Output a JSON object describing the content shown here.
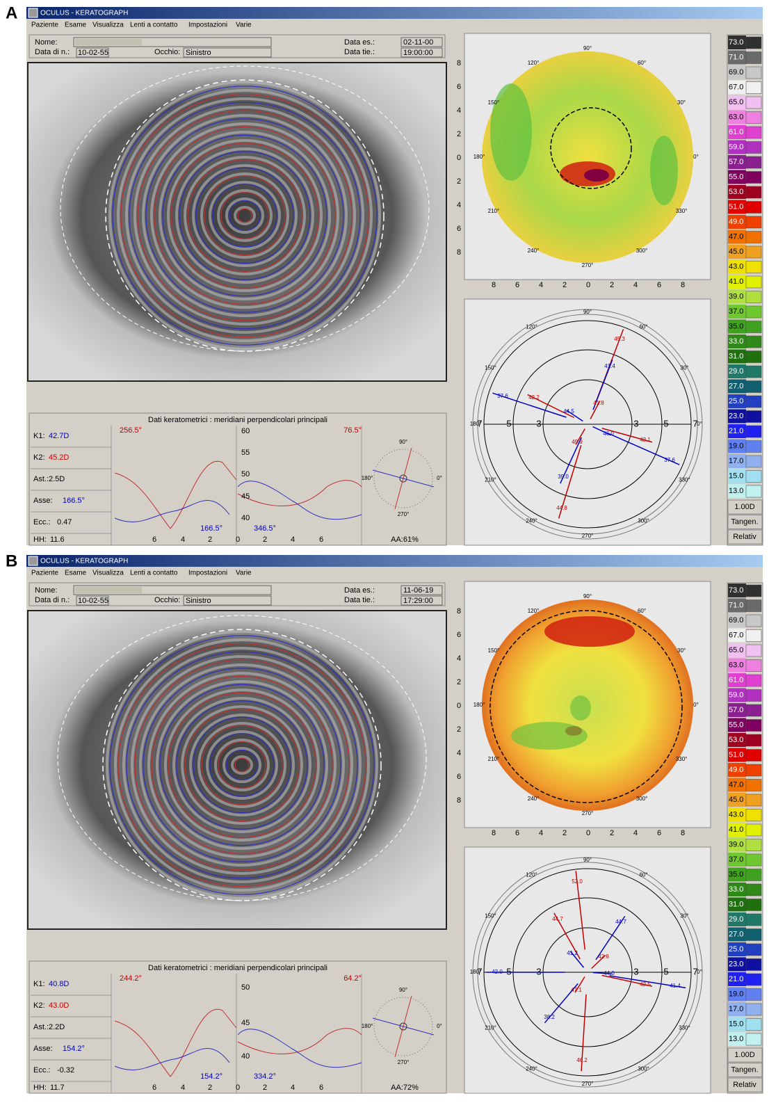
{
  "panels": [
    {
      "label": "A",
      "window_title": "OCULUS - KERATOGRAPH",
      "menu": [
        "Paziente",
        "Esame",
        "Visualizza",
        "Lenti a contatto",
        "Impostazioni",
        "Varie"
      ],
      "patient": {
        "name_label": "Nome:",
        "birth_label": "Data di n.:",
        "birth": "10-02-55",
        "eye_label": "Occhio:",
        "eye": "Sinistro",
        "exam_label": "Data es.:",
        "exam": "02-11-00",
        "time_label": "Data tie.:",
        "time": "19:00:00"
      },
      "kerato": {
        "title": "Dati keratometrici : meridiani perpendicolari principali",
        "rows": [
          {
            "label": "K1:",
            "value": "42.7D"
          },
          {
            "label": "K2:",
            "value": "45.2D"
          },
          {
            "label": "Ast.:",
            "value": "2.5D"
          },
          {
            "label": "Asse:",
            "value": "166.5°"
          },
          {
            "label": "Ecc.:",
            "value": "0.47"
          },
          {
            "label": "HH:",
            "value": "11.6"
          }
        ],
        "angles": [
          "256.5°",
          "76.5°",
          "166.5°",
          "346.5°"
        ],
        "yticks": [
          "60",
          "55",
          "50",
          "45",
          "40"
        ],
        "xticks": [
          "6",
          "4",
          "2",
          "0",
          "2",
          "4",
          "6"
        ],
        "compass": [
          "90°",
          "0°",
          "270°",
          "180°"
        ],
        "aa": "AA:61%"
      },
      "topo": {
        "ticks": [
          "8",
          "6",
          "4",
          "2",
          "0",
          "2",
          "4",
          "6",
          "8"
        ],
        "degrees": [
          "90°",
          "60°",
          "30°",
          "0°",
          "330°",
          "300°",
          "270°",
          "240°",
          "210°",
          "180°",
          "150°",
          "120°"
        ]
      },
      "polar": {
        "rings": [
          "7",
          "5",
          "3",
          "3",
          "5",
          "7"
        ],
        "degrees": [
          "90°",
          "60°",
          "30°",
          "0°",
          "330°",
          "300°",
          "270°",
          "240°",
          "210°",
          "180°",
          "150°",
          "120°"
        ],
        "values": [
          {
            "text": "45.3",
            "color": "#c00000"
          },
          {
            "text": "41.4",
            "color": "#0000c0"
          },
          {
            "text": "37.6",
            "color": "#0000c0"
          },
          {
            "text": "42.2",
            "color": "#c00000"
          },
          {
            "text": "44.5",
            "color": "#0000c0"
          },
          {
            "text": "41.8",
            "color": "#c00000"
          },
          {
            "text": "46.0",
            "color": "#0000c0"
          },
          {
            "text": "49.9",
            "color": "#c00000"
          },
          {
            "text": "42.1",
            "color": "#c00000"
          },
          {
            "text": "37.6",
            "color": "#0000c0"
          },
          {
            "text": "39.0",
            "color": "#0000c0"
          },
          {
            "text": "44.8",
            "color": "#c00000"
          }
        ]
      },
      "scale": {
        "levels": [
          "73.0",
          "71.0",
          "69.0",
          "67.0",
          "65.0",
          "63.0",
          "61.0",
          "59.0",
          "57.0",
          "55.0",
          "53.0",
          "51.0",
          "49.0",
          "47.0",
          "45.0",
          "43.0",
          "41.0",
          "39.0",
          "37.0",
          "35.0",
          "33.0",
          "31.0",
          "29.0",
          "27.0",
          "25.0",
          "23.0",
          "21.0",
          "19.0",
          "17.0",
          "15.0",
          "13.0"
        ],
        "step": "1.00D",
        "mode": "Tangen.",
        "reference": "Relativ"
      }
    },
    {
      "label": "B",
      "window_title": "OCULUS - KERATOGRAPH",
      "menu": [
        "Paziente",
        "Esame",
        "Visualizza",
        "Lenti a contatto",
        "Impostazioni",
        "Varie"
      ],
      "patient": {
        "name_label": "Nome:",
        "birth_label": "Data di n.:",
        "birth": "10-02-55",
        "eye_label": "Occhio:",
        "eye": "Sinistro",
        "exam_label": "Data es.:",
        "exam": "11-06-19",
        "time_label": "Data tie.:",
        "time": "17:29:00"
      },
      "kerato": {
        "title": "Dati keratometrici : meridiani perpendicolari principali",
        "rows": [
          {
            "label": "K1:",
            "value": "40.8D"
          },
          {
            "label": "K2:",
            "value": "43.0D"
          },
          {
            "label": "Ast.:",
            "value": "2.2D"
          },
          {
            "label": "Asse:",
            "value": "154.2°"
          },
          {
            "label": "Ecc.:",
            "value": "-0.32"
          },
          {
            "label": "HH:",
            "value": "11.7"
          }
        ],
        "angles": [
          "244.2°",
          "64.2°",
          "154.2°",
          "334.2°"
        ],
        "yticks": [
          "50",
          "45",
          "40"
        ],
        "xticks": [
          "6",
          "4",
          "2",
          "0",
          "2",
          "4",
          "6"
        ],
        "compass": [
          "90°",
          "0°",
          "270°",
          "180°"
        ],
        "aa": "AA:72%"
      },
      "topo": {
        "ticks": [
          "8",
          "6",
          "4",
          "2",
          "0",
          "2",
          "4",
          "6",
          "8"
        ],
        "degrees": [
          "90°",
          "60°",
          "30°",
          "0°",
          "330°",
          "300°",
          "270°",
          "240°",
          "210°",
          "180°",
          "150°",
          "120°"
        ]
      },
      "polar": {
        "rings": [
          "7",
          "5",
          "3",
          "3",
          "5",
          "7"
        ],
        "degrees": [
          "90°",
          "60°",
          "30°",
          "0°",
          "330°",
          "300°",
          "270°",
          "240°",
          "210°",
          "180°",
          "150°",
          "120°"
        ],
        "values": [
          {
            "text": "52.0",
            "color": "#c00000"
          },
          {
            "text": "44.7",
            "color": "#c00000"
          },
          {
            "text": "44.7",
            "color": "#0000c0"
          },
          {
            "text": "41.2",
            "color": "#0000c0"
          },
          {
            "text": "42.6",
            "color": "#c00000"
          },
          {
            "text": "42.0",
            "color": "#0000c0"
          },
          {
            "text": "44.0",
            "color": "#0000c0"
          },
          {
            "text": "42.5",
            "color": "#c00000"
          },
          {
            "text": "41.4",
            "color": "#0000c0"
          },
          {
            "text": "47.1",
            "color": "#c00000"
          },
          {
            "text": "38.2",
            "color": "#0000c0"
          },
          {
            "text": "46.2",
            "color": "#c00000"
          }
        ]
      },
      "scale": {
        "levels": [
          "73.0",
          "71.0",
          "69.0",
          "67.0",
          "65.0",
          "63.0",
          "61.0",
          "59.0",
          "57.0",
          "55.0",
          "53.0",
          "51.0",
          "49.0",
          "47.0",
          "45.0",
          "43.0",
          "41.0",
          "39.0",
          "37.0",
          "35.0",
          "33.0",
          "31.0",
          "29.0",
          "27.0",
          "25.0",
          "23.0",
          "21.0",
          "19.0",
          "17.0",
          "15.0",
          "13.0"
        ],
        "step": "1.00D",
        "mode": "Tangen.",
        "reference": "Relativ"
      }
    }
  ]
}
